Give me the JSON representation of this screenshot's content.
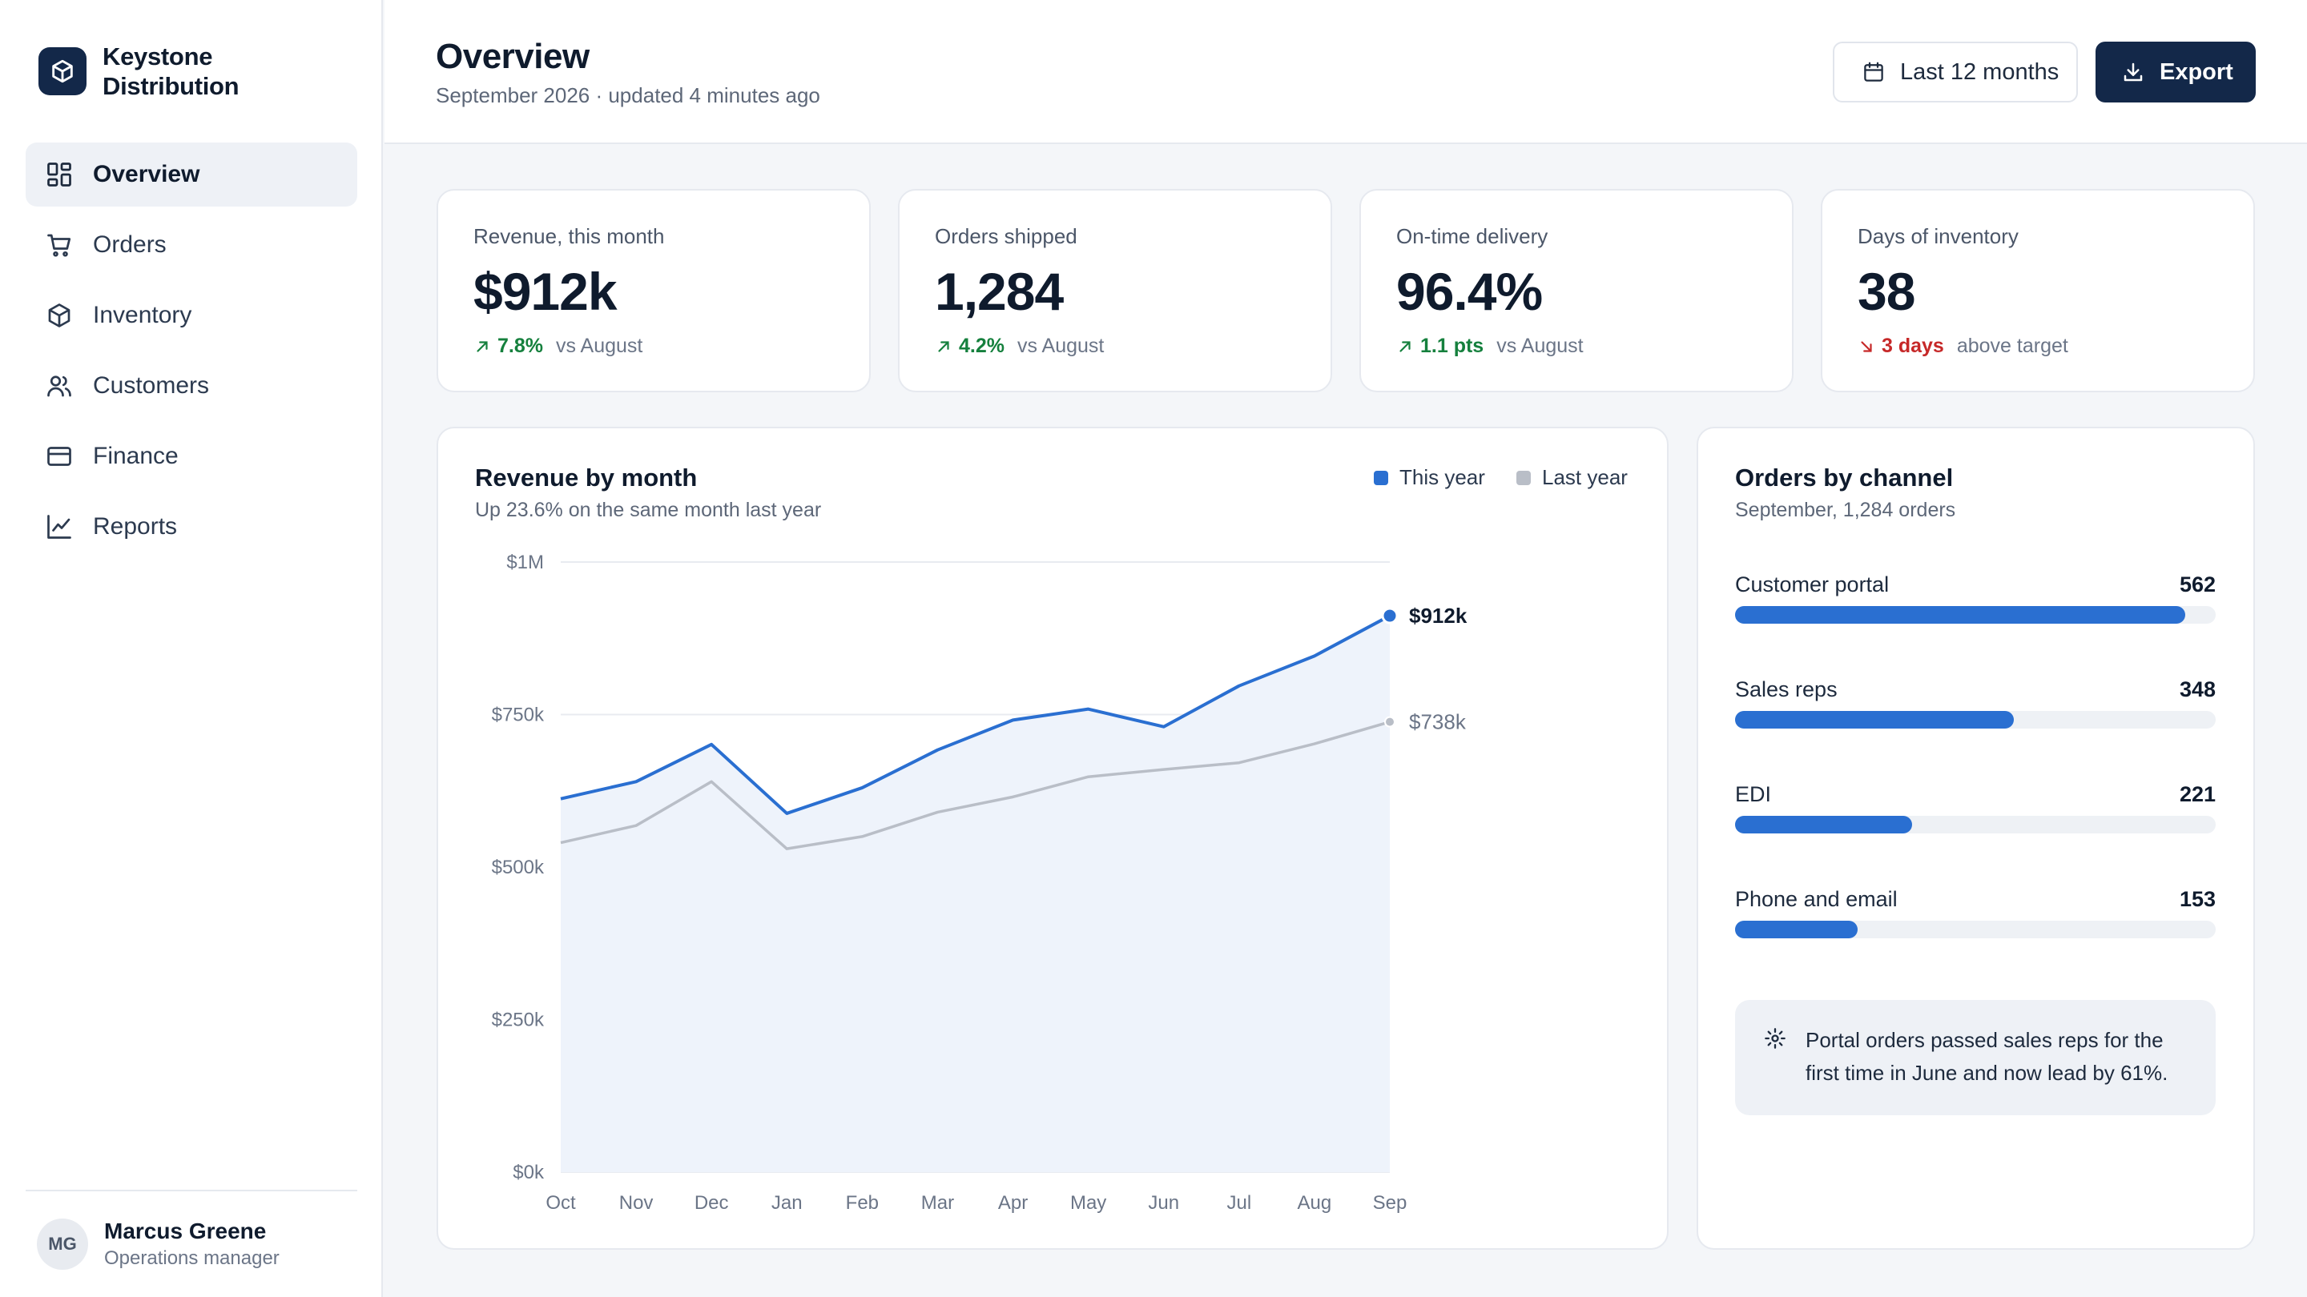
{
  "brand": {
    "name": "Keystone Distribution"
  },
  "sidebar": {
    "items": [
      {
        "label": "Overview",
        "icon": "dashboard-icon",
        "active": true
      },
      {
        "label": "Orders",
        "icon": "cart-icon",
        "active": false
      },
      {
        "label": "Inventory",
        "icon": "box-icon",
        "active": false
      },
      {
        "label": "Customers",
        "icon": "users-icon",
        "active": false
      },
      {
        "label": "Finance",
        "icon": "credit-card-icon",
        "active": false
      },
      {
        "label": "Reports",
        "icon": "line-chart-icon",
        "active": false
      }
    ]
  },
  "user": {
    "initials": "MG",
    "name": "Marcus Greene",
    "role": "Operations manager"
  },
  "header": {
    "title": "Overview",
    "subtitle": "September 2026 · updated 4 minutes ago",
    "range_label": "Last 12 months",
    "export_label": "Export"
  },
  "kpis": [
    {
      "label": "Revenue, this month",
      "value": "$912k",
      "delta": "7.8%",
      "context": "vs August",
      "direction": "up"
    },
    {
      "label": "Orders shipped",
      "value": "1,284",
      "delta": "4.2%",
      "context": "vs August",
      "direction": "up"
    },
    {
      "label": "On-time delivery",
      "value": "96.4%",
      "delta": "1.1 pts",
      "context": "vs August",
      "direction": "up"
    },
    {
      "label": "Days of inventory",
      "value": "38",
      "delta": "3 days",
      "context": "above target",
      "direction": "down"
    }
  ],
  "revenue_panel": {
    "title": "Revenue by month",
    "subtitle": "Up 23.6% on the same month last year",
    "end_label_this_year": "$912k",
    "end_label_last_year": "$738k"
  },
  "chart_data": {
    "type": "line",
    "title": "Revenue by month",
    "categories": [
      "Oct",
      "Nov",
      "Dec",
      "Jan",
      "Feb",
      "Mar",
      "Apr",
      "May",
      "Jun",
      "Jul",
      "Aug",
      "Sep"
    ],
    "series": [
      {
        "name": "This year",
        "color": "#2a6fd1",
        "values": [
          612,
          640,
          701,
          588,
          630,
          692,
          741,
          759,
          730,
          797,
          846,
          912
        ]
      },
      {
        "name": "Last year",
        "color": "#b9bec7",
        "values": [
          540,
          568,
          640,
          530,
          550,
          590,
          615,
          648,
          660,
          671,
          702,
          738
        ]
      }
    ],
    "ylim": [
      0,
      1000
    ],
    "yticks": [
      "$0k",
      "$250k",
      "$500k",
      "$750k",
      "$1M"
    ],
    "ytick_values": [
      0,
      250,
      500,
      750,
      1000
    ],
    "legend_position": "top-right",
    "grid": true
  },
  "channels_panel": {
    "title": "Orders by channel",
    "subtitle": "September, 1,284 orders",
    "channels": [
      {
        "label": "Customer portal",
        "count": "562",
        "value": 562
      },
      {
        "label": "Sales reps",
        "count": "348",
        "value": 348
      },
      {
        "label": "EDI",
        "count": "221",
        "value": 221
      },
      {
        "label": "Phone and email",
        "count": "153",
        "value": 153
      }
    ],
    "max_value": 600,
    "insight": "Portal orders passed sales reps for the first time in June and now lead by 61%."
  },
  "colors": {
    "accent": "#2a6fd1",
    "brand": "#132849",
    "positive": "#15803d",
    "negative": "#c62828"
  }
}
